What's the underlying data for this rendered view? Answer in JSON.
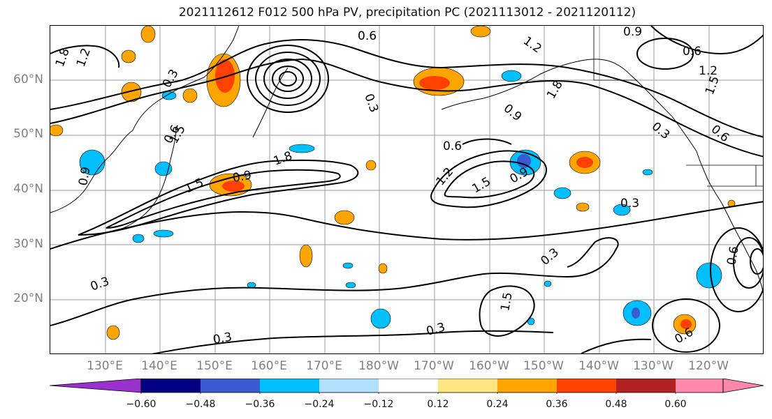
{
  "title": "2021112612 F012 500 hPa PV, precipitation PC (2021113012 - 2021120112)",
  "lat_labels": [
    "60°N",
    "50°N",
    "40°N",
    "30°N",
    "20°N"
  ],
  "lon_labels": [
    "130°E",
    "140°E",
    "150°E",
    "160°E",
    "170°E",
    "180°W",
    "170°W",
    "160°W",
    "150°W",
    "140°W",
    "130°W",
    "120°W"
  ],
  "contour_labels": [
    "0.6",
    "1.2",
    "0.9",
    "0.6",
    "1.2",
    "1.5",
    "0.3",
    "1.8",
    "0.9",
    "0.3",
    "0.6",
    "1.2",
    "1.5",
    "0.9",
    "1.8",
    "0.6",
    "1.5",
    "0.9",
    "0.3",
    "0.6",
    "0.3",
    "0.3",
    "0.3",
    "0.3",
    "0.6",
    "0.3",
    "1.5",
    "0.9",
    "1.2",
    "1.8",
    "1.5",
    "0.6"
  ],
  "colorbar": {
    "ticks": [
      "−0.60",
      "−0.48",
      "−0.36",
      "−0.24",
      "−0.12",
      "0.12",
      "0.24",
      "0.36",
      "0.48",
      "0.60"
    ],
    "colors": [
      "#9932cc",
      "#000080",
      "#3a5bcf",
      "#00bfff",
      "#b0e0ff",
      "#ffffff",
      "#ffe680",
      "#ffa500",
      "#ff4000",
      "#b22222",
      "#ff88aa"
    ]
  }
}
